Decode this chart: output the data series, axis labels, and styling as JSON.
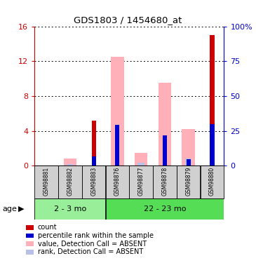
{
  "title": "GDS1803 / 1454680_at",
  "samples": [
    "GSM98881",
    "GSM98882",
    "GSM98883",
    "GSM98876",
    "GSM98877",
    "GSM98878",
    "GSM98879",
    "GSM98880"
  ],
  "groups": [
    {
      "label": "2 - 3 mo",
      "indices": [
        0,
        1,
        2
      ],
      "color": "#77dd77"
    },
    {
      "label": "22 - 23 mo",
      "indices": [
        3,
        4,
        5,
        6,
        7
      ],
      "color": "#44cc44"
    }
  ],
  "count_values": [
    0,
    0,
    5.2,
    0,
    0,
    0,
    0,
    15.0
  ],
  "percentile_values": [
    0,
    0,
    1.05,
    4.7,
    0,
    3.5,
    0.75,
    4.8
  ],
  "pink_bar_values": [
    0,
    0.8,
    0,
    12.5,
    1.5,
    9.5,
    4.2,
    0
  ],
  "blue_bar_values": [
    0,
    0.2,
    0,
    0,
    0.35,
    0,
    0.8,
    0
  ],
  "ylim_left": [
    0,
    16
  ],
  "ylim_right": [
    0,
    100
  ],
  "yticks_left": [
    0,
    4,
    8,
    12,
    16
  ],
  "yticks_right": [
    0,
    25,
    50,
    75,
    100
  ],
  "ytick_labels_right": [
    "0",
    "25",
    "50",
    "75",
    "100%"
  ],
  "colors": {
    "count": "#cc0000",
    "percentile": "#0000cc",
    "pink_bar": "#ffb0b8",
    "blue_bar": "#b8c0e8",
    "axis_left": "#cc0000",
    "axis_right": "#0000cc",
    "sample_bg": "#d0d0d0",
    "group1_bg": "#99ee99",
    "group2_bg": "#55dd55"
  },
  "age_label": "age",
  "legend_items": [
    {
      "color": "#cc0000",
      "label": "count"
    },
    {
      "color": "#0000cc",
      "label": "percentile rank within the sample"
    },
    {
      "color": "#ffb0b8",
      "label": "value, Detection Call = ABSENT"
    },
    {
      "color": "#b8c0e8",
      "label": "rank, Detection Call = ABSENT"
    }
  ],
  "figsize": [
    3.65,
    3.75
  ],
  "dpi": 100
}
